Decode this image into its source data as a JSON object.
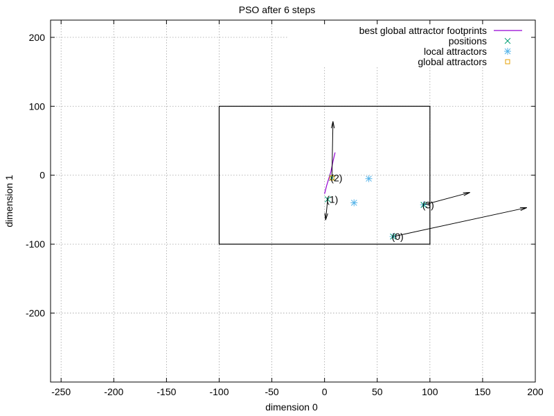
{
  "chart_data": {
    "type": "scatter",
    "title": "PSO after 6 steps",
    "xlabel": "dimension 0",
    "ylabel": "dimension 1",
    "xlim": [
      -260,
      200
    ],
    "ylim": [
      -300,
      225
    ],
    "xticks": [
      -250,
      -200,
      -150,
      -100,
      -50,
      0,
      50,
      100,
      150,
      200
    ],
    "yticks": [
      -200,
      -100,
      0,
      100,
      200
    ],
    "grid": true,
    "legend_position": "top-right",
    "search_box": {
      "x": [
        -100,
        100
      ],
      "y": [
        -100,
        100
      ],
      "color": "#000000"
    },
    "colors": {
      "footprints": "#9400d3",
      "positions": "#009e73",
      "local_attractors": "#56b4e9",
      "global_attractors": "#e69f00"
    },
    "legend": [
      {
        "key": "footprints",
        "label": "best global attractor footprints",
        "marker": "line"
      },
      {
        "key": "positions",
        "label": "positions",
        "marker": "cross"
      },
      {
        "key": "local_attractors",
        "label": "local attractors",
        "marker": "star"
      },
      {
        "key": "global_attractors",
        "label": "global attractors",
        "marker": "square"
      }
    ],
    "footprints": [
      {
        "x": 0,
        "y": -27
      },
      {
        "x": 2,
        "y": -15
      },
      {
        "x": 4,
        "y": -5
      },
      {
        "x": 6,
        "y": 5
      },
      {
        "x": 8,
        "y": 20
      },
      {
        "x": 10,
        "y": 33
      }
    ],
    "particles": [
      {
        "label": "(0)",
        "position": {
          "x": 65,
          "y": -89
        },
        "velocity_end": {
          "x": 192,
          "y": -47
        }
      },
      {
        "label": "(1)",
        "position": {
          "x": 3,
          "y": -35
        },
        "velocity_end": {
          "x": 1,
          "y": -65
        }
      },
      {
        "label": "(2)",
        "position": {
          "x": 7,
          "y": -4
        },
        "velocity_end": {
          "x": 8,
          "y": 78
        }
      },
      {
        "label": "(3)",
        "position": {
          "x": 94,
          "y": -43
        },
        "velocity_end": {
          "x": 138,
          "y": -25
        }
      }
    ],
    "local_attractors": [
      {
        "x": 28,
        "y": -40
      },
      {
        "x": 42,
        "y": -5
      },
      {
        "x": 65,
        "y": -89
      },
      {
        "x": 94,
        "y": -43
      }
    ],
    "global_attractors": [
      {
        "x": 7,
        "y": -4
      }
    ]
  }
}
